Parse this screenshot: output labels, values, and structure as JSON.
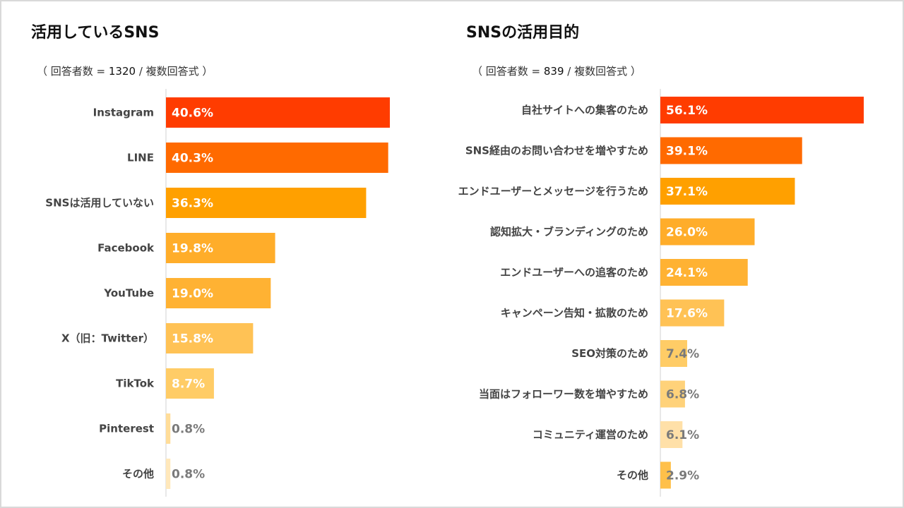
{
  "chart_data": [
    {
      "type": "bar",
      "orientation": "horizontal",
      "title": "活用しているSNS",
      "subtitle": {
        "prefix": "（ 回答者数 = ",
        "count": "1320",
        "suffix": " / 複数回答式 ）"
      },
      "unit": "%",
      "categories": [
        "Instagram",
        "LINE",
        "SNSは活用していない",
        "Facebook",
        "YouTube",
        "X（旧：Twitter）",
        "TikTok",
        "Pinterest",
        "その他"
      ],
      "values": [
        40.6,
        40.3,
        36.3,
        19.8,
        19.0,
        15.8,
        8.7,
        0.8,
        0.8
      ],
      "labels": [
        "40.6%",
        "40.3%",
        "36.3%",
        "19.8%",
        "19.0%",
        "15.8%",
        "8.7%",
        "0.8%",
        "0.8%"
      ],
      "colors": [
        "#ff3c00",
        "#ff6a00",
        "#ffa000",
        "#ffad2a",
        "#ffb233",
        "#ffc255",
        "#ffcc66",
        "#ffdd99",
        "#ffe8bb"
      ],
      "xlim": [
        0,
        40.6
      ]
    },
    {
      "type": "bar",
      "orientation": "horizontal",
      "title": "SNSの活用目的",
      "subtitle": {
        "prefix": "（ 回答者数 = ",
        "count": "839",
        "suffix": " / 複数回答式 ）"
      },
      "unit": "%",
      "categories": [
        "自社サイトへの集客のため",
        "SNS経由のお問い合わせを増やすため",
        "エンドユーザーとメッセージを行うため",
        "認知拡大・ブランディングのため",
        "エンドユーザーへの追客のため",
        "キャンペーン告知・拡散のため",
        "SEO対策のため",
        "当面はフォローワー数を増やすため",
        "コミュニティ運営のため",
        "その他"
      ],
      "values": [
        56.1,
        39.1,
        37.1,
        26.0,
        24.1,
        17.6,
        7.4,
        6.8,
        6.1,
        2.9
      ],
      "labels": [
        "56.1%",
        "39.1%",
        "37.1%",
        "26.0%",
        "24.1%",
        "17.6%",
        "7.4%",
        "6.8%",
        "6.1%",
        "2.9%"
      ],
      "colors": [
        "#ff3c00",
        "#ff6a00",
        "#ffa000",
        "#ffad2a",
        "#ffb233",
        "#ffc255",
        "#ffcc66",
        "#ffd27a",
        "#ffe0a8",
        "#ffc04a"
      ],
      "xlim": [
        0,
        56.1
      ]
    }
  ]
}
